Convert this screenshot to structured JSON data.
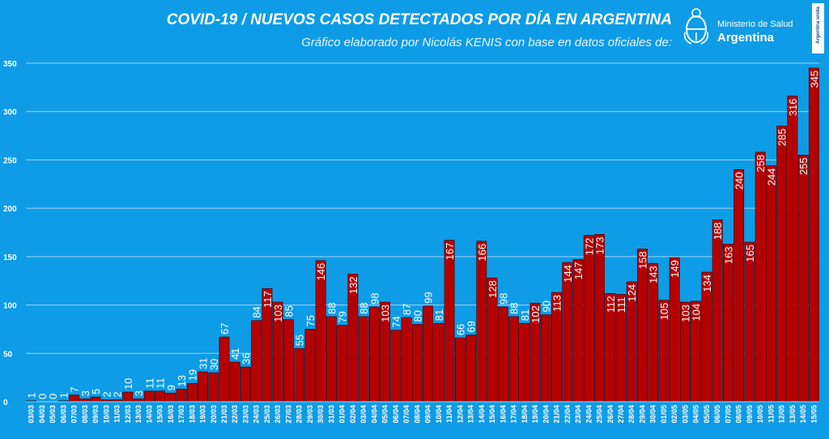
{
  "header": {
    "title": "COVID-19  /  NUEVOS CASOS DETECTADOS POR DÍA EN ARGENTINA",
    "subtitle": "Gráfico elaborado por Nicolás KENIS con base en datos oficiales de:",
    "logo_ministry": "Ministerio de Salud",
    "logo_country": "Argentina",
    "badge": "Argentina unida"
  },
  "colors": {
    "background": "#0e9ce6",
    "bar": "#b50000",
    "bar_edge": "#3a0000",
    "grid": "#9fd6f6",
    "text": "#ffffff"
  },
  "chart_data": {
    "type": "bar",
    "ylim": [
      0,
      350
    ],
    "yticks": [
      0,
      50,
      100,
      150,
      200,
      250,
      300,
      350
    ],
    "grid": true,
    "categories": [
      "03/03",
      "04/03",
      "05/03",
      "06/03",
      "07/03",
      "08/03",
      "09/03",
      "10/03",
      "11/03",
      "12/03",
      "13/03",
      "14/03",
      "15/03",
      "16/03",
      "17/03",
      "18/03",
      "19/03",
      "20/03",
      "21/03",
      "22/03",
      "23/03",
      "24/03",
      "25/03",
      "26/03",
      "27/03",
      "28/03",
      "29/03",
      "30/03",
      "31/03",
      "01/04",
      "02/04",
      "03/04",
      "04/04",
      "05/04",
      "06/04",
      "07/04",
      "08/04",
      "09/04",
      "10/04",
      "11/04",
      "12/04",
      "13/04",
      "14/04",
      "15/04",
      "16/04",
      "17/04",
      "18/04",
      "19/04",
      "20/04",
      "21/04",
      "22/04",
      "23/04",
      "24/04",
      "25/04",
      "26/04",
      "27/04",
      "28/04",
      "29/04",
      "30/04",
      "01/05",
      "02/05",
      "03/05",
      "04/05",
      "05/05",
      "06/05",
      "07/05",
      "08/05",
      "09/05",
      "10/05",
      "11/05",
      "12/05",
      "13/05",
      "14/05",
      "15/05"
    ],
    "values": [
      1,
      0,
      0,
      1,
      7,
      3,
      5,
      2,
      2,
      10,
      3,
      11,
      11,
      9,
      13,
      19,
      31,
      30,
      67,
      41,
      36,
      84,
      117,
      103,
      85,
      55,
      75,
      146,
      88,
      79,
      132,
      88,
      98,
      103,
      74,
      87,
      80,
      99,
      81,
      167,
      66,
      69,
      166,
      128,
      98,
      88,
      81,
      102,
      90,
      113,
      144,
      147,
      172,
      173,
      112,
      111,
      124,
      158,
      143,
      105,
      149,
      103,
      104,
      134,
      188,
      163,
      240,
      165,
      258,
      244,
      285,
      316,
      255,
      345
    ]
  }
}
